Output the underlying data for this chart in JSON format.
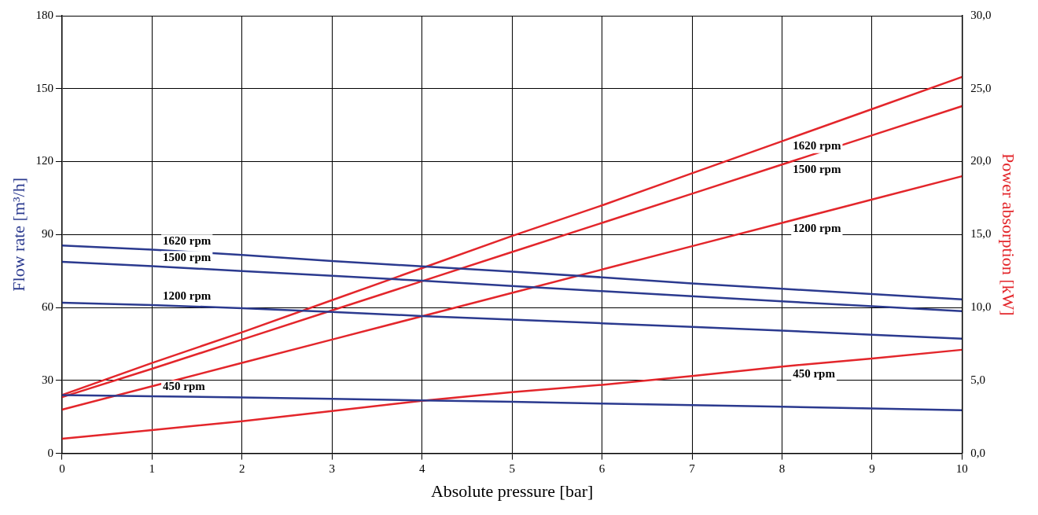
{
  "chart_data": {
    "type": "line",
    "xlabel": "Absolute pressure [bar]",
    "ylabel": "Flow rate [m³/h]",
    "y2label": "Power absorption [kW]",
    "x": [
      0,
      1,
      2,
      3,
      4,
      5,
      6,
      7,
      8,
      9,
      10
    ],
    "xlim": [
      0,
      10
    ],
    "xticks": [
      0,
      1,
      2,
      3,
      4,
      5,
      6,
      7,
      8,
      9,
      10
    ],
    "ylim": [
      0,
      180
    ],
    "yticks": [
      0,
      30,
      60,
      90,
      120,
      150,
      180
    ],
    "y2lim": [
      0,
      30
    ],
    "y2ticks": [
      {
        "value": 0,
        "label": "0,0"
      },
      {
        "value": 5,
        "label": "5,0"
      },
      {
        "value": 10,
        "label": "10,0"
      },
      {
        "value": 15,
        "label": "15,0"
      },
      {
        "value": 20,
        "label": "20,0"
      },
      {
        "value": 25,
        "label": "25,0"
      },
      {
        "value": 30,
        "label": "30,0"
      }
    ],
    "grid": true,
    "legend": false,
    "marker": "none",
    "line_style": "solid",
    "series": [
      {
        "name": "1620 rpm",
        "color": "#2b3a8f",
        "values": [
          85.5,
          83.8,
          81.6,
          79.1,
          76.9,
          74.7,
          72.4,
          69.9,
          67.7,
          65.5,
          63.3
        ]
      },
      {
        "name": "1500 rpm",
        "color": "#2b3a8f",
        "values": [
          78.8,
          77,
          75,
          73,
          71,
          68.8,
          66.7,
          64.6,
          62.5,
          60.5,
          58.5
        ]
      },
      {
        "name": "1200 rpm",
        "color": "#2b3a8f",
        "values": [
          62,
          61,
          59.7,
          58.2,
          56.5,
          55,
          53.5,
          52,
          50.5,
          48.8,
          47.2
        ]
      },
      {
        "name": "450 rpm",
        "color": "#2b3a8f",
        "values": [
          24,
          23.5,
          23,
          22.4,
          21.8,
          21.2,
          20.5,
          19.8,
          19.2,
          18.5,
          17.7
        ]
      },
      {
        "name": "1620 rpm",
        "color": "#e3262b",
        "axis": "y2",
        "values": [
          4.0,
          6.2,
          8.3,
          10.5,
          12.7,
          14.9,
          17.0,
          19.2,
          21.4,
          23.6,
          25.8
        ]
      },
      {
        "name": "1500 rpm",
        "color": "#e3262b",
        "axis": "y2",
        "values": [
          3.85,
          5.8,
          7.8,
          9.8,
          11.8,
          13.8,
          15.8,
          17.8,
          19.8,
          21.8,
          23.8
        ]
      },
      {
        "name": "1200 rpm",
        "color": "#e3262b",
        "axis": "y2",
        "values": [
          3.0,
          4.6,
          6.2,
          7.8,
          9.4,
          11.0,
          12.6,
          14.2,
          15.8,
          17.4,
          19.0
        ]
      },
      {
        "name": "450 rpm",
        "color": "#e3262b",
        "axis": "y2",
        "values": [
          1.0,
          1.6,
          2.2,
          2.9,
          3.6,
          4.2,
          4.7,
          5.3,
          5.95,
          6.5,
          7.1
        ]
      }
    ]
  }
}
